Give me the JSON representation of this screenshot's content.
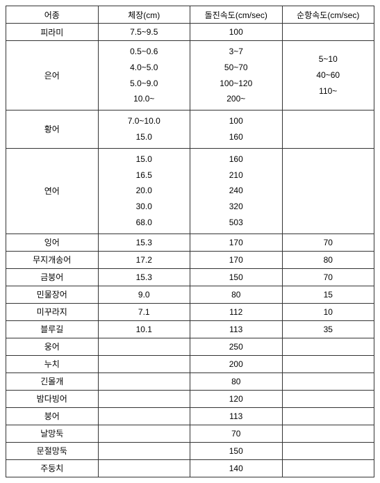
{
  "table": {
    "columns": [
      "어종",
      "체장(cm)",
      "돌진속도(cm/sec)",
      "순항속도(cm/sec)"
    ],
    "col_widths": [
      "25%",
      "25%",
      "25%",
      "25%"
    ],
    "border_color": "#333333",
    "background_color": "#ffffff",
    "font_size": 12,
    "rows": [
      {
        "species": "피라미",
        "length": "7.5~9.5",
        "burst": "100",
        "cruise": ""
      },
      {
        "species": "은어",
        "length_lines": [
          "0.5~0.6",
          "4.0~5.0",
          "5.0~9.0",
          "10.0~"
        ],
        "burst_lines": [
          "3~7",
          "50~70",
          "100~120",
          "200~"
        ],
        "cruise_lines": [
          "5~10",
          "40~60",
          "110~"
        ]
      },
      {
        "species": "황어",
        "length_lines": [
          "7.0~10.0",
          "15.0"
        ],
        "burst_lines": [
          "100",
          "160"
        ],
        "cruise": ""
      },
      {
        "species": "연어",
        "length_lines": [
          "15.0",
          "16.5",
          "20.0",
          "30.0",
          "68.0"
        ],
        "burst_lines": [
          "160",
          "210",
          "240",
          "320",
          "503"
        ],
        "cruise": ""
      },
      {
        "species": "잉어",
        "length": "15.3",
        "burst": "170",
        "cruise": "70"
      },
      {
        "species": "무지개송어",
        "length": "17.2",
        "burst": "170",
        "cruise": "80"
      },
      {
        "species": "금붕어",
        "length": "15.3",
        "burst": "150",
        "cruise": "70"
      },
      {
        "species": "민물장어",
        "length": "9.0",
        "burst": "80",
        "cruise": "15"
      },
      {
        "species": "미꾸라지",
        "length": "7.1",
        "burst": "112",
        "cruise": "10"
      },
      {
        "species": "블루길",
        "length": "10.1",
        "burst": "113",
        "cruise": "35"
      },
      {
        "species": "웅어",
        "length": "",
        "burst": "250",
        "cruise": ""
      },
      {
        "species": "누치",
        "length": "",
        "burst": "200",
        "cruise": ""
      },
      {
        "species": "긴몰개",
        "length": "",
        "burst": "80",
        "cruise": ""
      },
      {
        "species": "밤다빙어",
        "length": "",
        "burst": "120",
        "cruise": ""
      },
      {
        "species": "붕어",
        "length": "",
        "burst": "113",
        "cruise": ""
      },
      {
        "species": "날망둑",
        "length": "",
        "burst": "70",
        "cruise": ""
      },
      {
        "species": "문절망둑",
        "length": "",
        "burst": "150",
        "cruise": ""
      },
      {
        "species": "주둥치",
        "length": "",
        "burst": "140",
        "cruise": ""
      }
    ]
  }
}
